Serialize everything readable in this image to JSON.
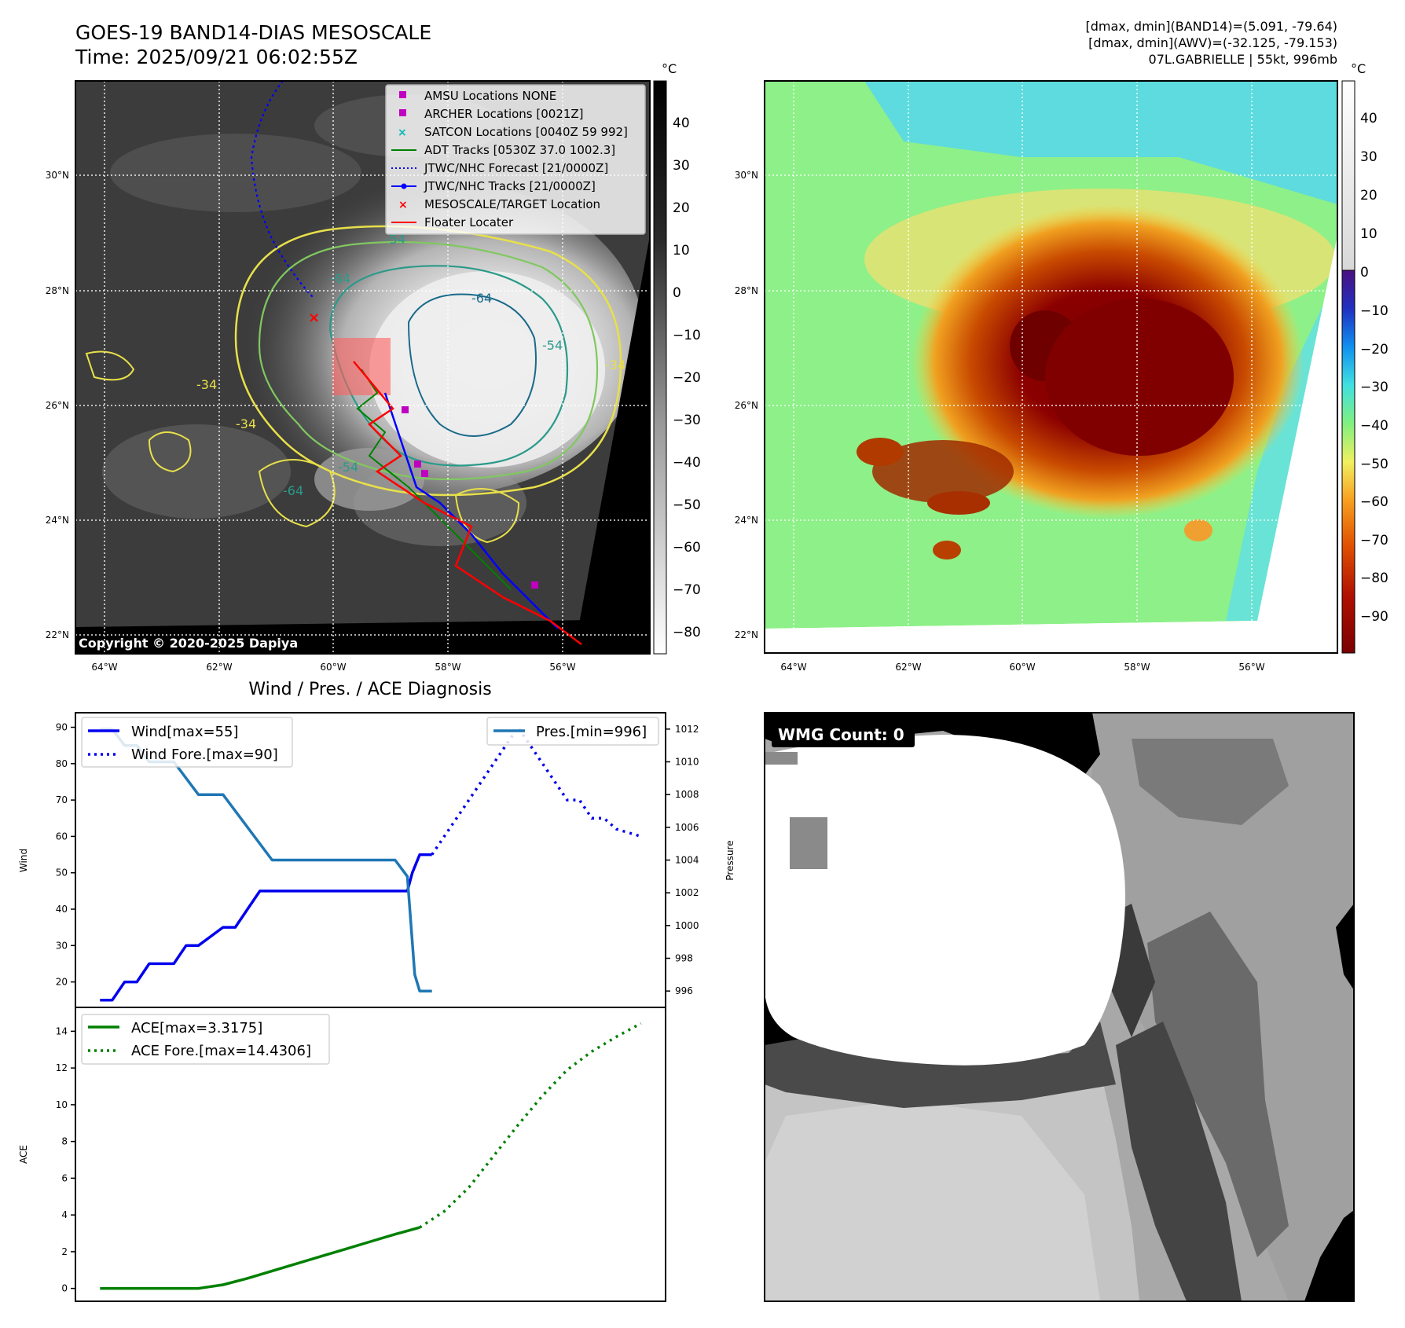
{
  "header": {
    "title_line1": "GOES-19 BAND14-DIAS MESOSCALE",
    "title_line2": "Time: 2025/09/21 06:02:55Z",
    "info_line1": "[dmax, dmin](BAND14)=(5.091, -79.64)",
    "info_line2": "[dmax, dmin](AWV)=(-32.125, -79.153)",
    "info_line3": "07L.GABRIELLE | 55kt, 996mb"
  },
  "ir_panel": {
    "lat_labels": [
      "30°N",
      "28°N",
      "26°N",
      "24°N",
      "22°N"
    ],
    "lon_labels": [
      "64°W",
      "62°W",
      "60°W",
      "58°W",
      "56°W"
    ],
    "colorbar_unit": "°C",
    "colorbar_ticks": [
      "40",
      "30",
      "20",
      "10",
      "0",
      "−10",
      "−20",
      "−30",
      "−40",
      "−50",
      "−60",
      "−70",
      "−80"
    ],
    "copyright": "Copyright © 2020-2025 Dapiya",
    "contour_labels": [
      "-54",
      "-64",
      "-64",
      "-54",
      "-34",
      "-34",
      "-54",
      "-34",
      "-64"
    ],
    "legend": [
      {
        "label": "AMSU Locations NONE",
        "marker": "square",
        "color": "#c000c0"
      },
      {
        "label": "ARCHER Locations [0021Z]",
        "marker": "square",
        "color": "#c000c0"
      },
      {
        "label": "SATCON Locations [0040Z 59 992]",
        "marker": "x",
        "color": "#00b8b8"
      },
      {
        "label": "ADT Tracks [0530Z 37.0 1002.3]",
        "marker": "line",
        "color": "#008000"
      },
      {
        "label": "JTWC/NHC Forecast [21/0000Z]",
        "marker": "dotted",
        "color": "#0000ff"
      },
      {
        "label": "JTWC/NHC Tracks [21/0000Z]",
        "marker": "line-dot",
        "color": "#0000ff"
      },
      {
        "label": "MESOSCALE/TARGET Location",
        "marker": "x",
        "color": "#ff0000"
      },
      {
        "label": "Floater Locater",
        "marker": "line",
        "color": "#ff0000"
      }
    ]
  },
  "color_panel": {
    "lat_labels": [
      "30°N",
      "28°N",
      "26°N",
      "24°N",
      "22°N"
    ],
    "lon_labels": [
      "64°W",
      "62°W",
      "60°W",
      "58°W",
      "56°W"
    ],
    "colorbar_unit": "°C",
    "colorbar_ticks": [
      "40",
      "30",
      "20",
      "10",
      "0",
      "−10",
      "−20",
      "−30",
      "−40",
      "−50",
      "−60",
      "−70",
      "−80",
      "−90"
    ]
  },
  "wmg_panel": {
    "label": "WMG Count: 0"
  },
  "chart_data": [
    {
      "type": "line",
      "title": "Wind / Pres. / ACE Diagnosis",
      "ylabel": "Wind",
      "y2label": "Pressure",
      "ylim": [
        13,
        94
      ],
      "y2lim": [
        995,
        1013
      ],
      "yticks": [
        20,
        30,
        40,
        50,
        60,
        70,
        80,
        90
      ],
      "y2ticks": [
        996,
        998,
        1000,
        1002,
        1004,
        1006,
        1008,
        1010,
        1012
      ],
      "xlim": [
        0,
        24
      ],
      "legend_left": [
        "Wind[max=55]",
        "Wind Fore.[max=90]"
      ],
      "legend_right": [
        "Pres.[min=996]"
      ],
      "series": [
        {
          "name": "Wind[max=55]",
          "style": "solid",
          "color": "#0000ee",
          "axis": "left",
          "x": [
            1,
            1.5,
            2,
            2.5,
            3,
            4,
            4.5,
            5,
            6,
            6.5,
            7,
            7.5,
            8,
            9,
            13,
            13.5,
            13.7,
            14,
            14.5
          ],
          "y": [
            15,
            15,
            20,
            20,
            25,
            25,
            30,
            30,
            35,
            35,
            40,
            45,
            45,
            45,
            45,
            45,
            50,
            55,
            55
          ]
        },
        {
          "name": "Wind Fore.[max=90]",
          "style": "dotted",
          "color": "#0000ee",
          "axis": "left",
          "x": [
            14.5,
            15,
            16,
            17,
            17.5,
            18,
            18.5,
            19,
            19.5,
            20,
            20.5,
            21,
            21.5,
            22,
            23
          ],
          "y": [
            55,
            60,
            70,
            80,
            85,
            90,
            85,
            80,
            75,
            70,
            70,
            65,
            65,
            62,
            60
          ]
        },
        {
          "name": "Pres.[min=996]",
          "style": "solid",
          "color": "#1f77b4",
          "axis": "right",
          "x": [
            1,
            1.5,
            2,
            2.5,
            3,
            4,
            5,
            6,
            8,
            9,
            10,
            13,
            13.5,
            13.8,
            14,
            14.5
          ],
          "y": [
            1012,
            1012,
            1011,
            1011,
            1010,
            1010,
            1008,
            1008,
            1004,
            1004,
            1004,
            1004,
            1003,
            997,
            996,
            996
          ]
        }
      ]
    },
    {
      "type": "line",
      "ylabel": "ACE",
      "ylim": [
        -0.7,
        15.3
      ],
      "yticks": [
        0,
        2,
        4,
        6,
        8,
        10,
        12,
        14
      ],
      "xlim": [
        0,
        24
      ],
      "legend": [
        "ACE[max=3.3175]",
        "ACE Fore.[max=14.4306]"
      ],
      "series": [
        {
          "name": "ACE[max=3.3175]",
          "style": "solid",
          "color": "#008000",
          "x": [
            1,
            3,
            5,
            6,
            7,
            8,
            9,
            10,
            11,
            12,
            13,
            14
          ],
          "y": [
            0,
            0,
            0,
            0.2,
            0.55,
            0.95,
            1.35,
            1.75,
            2.15,
            2.55,
            2.95,
            3.3175
          ]
        },
        {
          "name": "ACE Fore.[max=14.4306]",
          "style": "dotted",
          "color": "#008000",
          "x": [
            14,
            15,
            16,
            17,
            18,
            19,
            20,
            21,
            22,
            23
          ],
          "y": [
            3.3175,
            4.2,
            5.5,
            7.2,
            8.9,
            10.5,
            11.9,
            12.9,
            13.7,
            14.4306
          ]
        }
      ]
    }
  ]
}
